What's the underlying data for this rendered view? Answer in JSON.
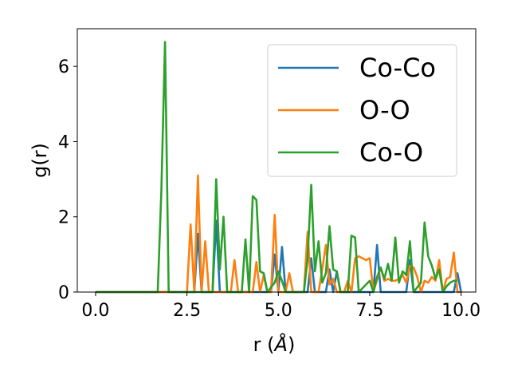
{
  "chart_data": {
    "type": "line",
    "xlabel": "r (",
    "xlabel_unit": "Å",
    "xlabel_close": ")",
    "ylabel": "g(r)",
    "xlim": [
      -0.5,
      10.4
    ],
    "ylim": [
      0,
      7
    ],
    "xticks": [
      0.0,
      2.5,
      5.0,
      7.5,
      10.0
    ],
    "xtick_labels": [
      "0.0",
      "2.5",
      "5.0",
      "7.5",
      "10.0"
    ],
    "yticks": [
      0,
      2,
      4,
      6
    ],
    "ytick_labels": [
      "0",
      "2",
      "4",
      "6"
    ],
    "grid": false,
    "legend_position": "top-right",
    "series": [
      {
        "name": "Co-Co",
        "color": "#1f77b4",
        "points": [
          [
            0,
            0
          ],
          [
            2.5,
            0
          ],
          [
            2.6,
            0
          ],
          [
            2.7,
            0
          ],
          [
            2.8,
            1.55
          ],
          [
            2.9,
            0
          ],
          [
            3.2,
            0
          ],
          [
            3.3,
            1.9
          ],
          [
            3.4,
            0
          ],
          [
            4.8,
            0
          ],
          [
            4.9,
            1.0
          ],
          [
            5.0,
            0
          ],
          [
            5.1,
            1.2
          ],
          [
            5.2,
            0
          ],
          [
            5.8,
            0
          ],
          [
            5.9,
            0.9
          ],
          [
            6.0,
            0
          ],
          [
            6.3,
            0
          ],
          [
            6.4,
            0.6
          ],
          [
            6.5,
            0
          ],
          [
            6.6,
            0.55
          ],
          [
            6.7,
            0
          ],
          [
            7.6,
            0
          ],
          [
            7.7,
            1.25
          ],
          [
            7.8,
            0
          ],
          [
            8.5,
            0
          ],
          [
            8.6,
            0.85
          ],
          [
            8.7,
            0
          ],
          [
            9.8,
            0
          ],
          [
            9.9,
            0.5
          ],
          [
            10.0,
            0
          ]
        ]
      },
      {
        "name": "O-O",
        "color": "#ff7f0e",
        "points": [
          [
            0,
            0
          ],
          [
            2.5,
            0
          ],
          [
            2.6,
            1.8
          ],
          [
            2.7,
            0
          ],
          [
            2.8,
            3.1
          ],
          [
            2.9,
            0
          ],
          [
            3.0,
            1.35
          ],
          [
            3.1,
            0
          ],
          [
            3.7,
            0
          ],
          [
            3.8,
            0.85
          ],
          [
            3.9,
            0
          ],
          [
            4.3,
            0
          ],
          [
            4.4,
            0.8
          ],
          [
            4.5,
            0
          ],
          [
            4.6,
            0.45
          ],
          [
            4.7,
            0
          ],
          [
            4.8,
            0
          ],
          [
            4.9,
            2.05
          ],
          [
            5.0,
            0
          ],
          [
            5.2,
            0
          ],
          [
            5.3,
            0.5
          ],
          [
            5.4,
            0
          ],
          [
            5.7,
            0
          ],
          [
            5.8,
            1.6
          ],
          [
            5.9,
            0
          ],
          [
            6.1,
            0
          ],
          [
            6.2,
            0.6
          ],
          [
            6.3,
            1.25
          ],
          [
            6.4,
            0.2
          ],
          [
            6.5,
            0.35
          ],
          [
            6.6,
            0
          ],
          [
            6.8,
            0
          ],
          [
            6.9,
            0.3
          ],
          [
            7.0,
            0
          ],
          [
            7.1,
            0.9
          ],
          [
            7.2,
            0.95
          ],
          [
            7.3,
            0.9
          ],
          [
            7.4,
            0.85
          ],
          [
            7.5,
            0.9
          ],
          [
            7.6,
            0
          ],
          [
            7.8,
            0.65
          ],
          [
            7.9,
            0.3
          ],
          [
            8.0,
            0.35
          ],
          [
            8.1,
            0.3
          ],
          [
            8.2,
            0.3
          ],
          [
            8.3,
            0.35
          ],
          [
            8.4,
            0.45
          ],
          [
            8.5,
            0.25
          ],
          [
            8.6,
            0.7
          ],
          [
            8.7,
            0.65
          ],
          [
            8.8,
            0.4
          ],
          [
            8.9,
            0
          ],
          [
            9.0,
            0.3
          ],
          [
            9.1,
            0.25
          ],
          [
            9.2,
            0.4
          ],
          [
            9.3,
            0.3
          ],
          [
            9.4,
            0.85
          ],
          [
            9.5,
            0
          ],
          [
            9.6,
            0.35
          ],
          [
            9.7,
            0.4
          ],
          [
            9.8,
            1.05
          ],
          [
            9.9,
            0
          ],
          [
            10.0,
            0
          ]
        ]
      },
      {
        "name": "Co-O",
        "color": "#2ca02c",
        "points": [
          [
            0,
            0
          ],
          [
            1.7,
            0
          ],
          [
            1.8,
            2.7
          ],
          [
            1.9,
            6.65
          ],
          [
            2.0,
            0
          ],
          [
            2.1,
            0
          ],
          [
            3.2,
            0
          ],
          [
            3.3,
            3.0
          ],
          [
            3.4,
            0.6
          ],
          [
            3.5,
            2.0
          ],
          [
            3.6,
            0
          ],
          [
            4.0,
            0
          ],
          [
            4.1,
            1.4
          ],
          [
            4.2,
            0
          ],
          [
            4.3,
            2.55
          ],
          [
            4.4,
            2.45
          ],
          [
            4.5,
            0.55
          ],
          [
            4.6,
            0.5
          ],
          [
            4.7,
            0
          ],
          [
            4.9,
            0.25
          ],
          [
            5.0,
            0.55
          ],
          [
            5.1,
            0.3
          ],
          [
            5.2,
            0
          ],
          [
            5.7,
            0
          ],
          [
            5.8,
            0.9
          ],
          [
            5.9,
            2.85
          ],
          [
            6.0,
            0.55
          ],
          [
            6.1,
            1.35
          ],
          [
            6.2,
            0.25
          ],
          [
            6.3,
            0.5
          ],
          [
            6.4,
            1.75
          ],
          [
            6.5,
            0.6
          ],
          [
            6.6,
            0.55
          ],
          [
            6.7,
            0
          ],
          [
            6.9,
            0
          ],
          [
            7.0,
            1.5
          ],
          [
            7.1,
            1.45
          ],
          [
            7.2,
            0
          ],
          [
            7.5,
            0.3
          ],
          [
            7.6,
            0
          ],
          [
            7.7,
            0.4
          ],
          [
            7.8,
            0.65
          ],
          [
            7.9,
            0.35
          ],
          [
            8.0,
            0.75
          ],
          [
            8.1,
            0.3
          ],
          [
            8.2,
            1.45
          ],
          [
            8.3,
            0.25
          ],
          [
            8.4,
            0.55
          ],
          [
            8.5,
            0.45
          ],
          [
            8.6,
            1.35
          ],
          [
            8.7,
            0
          ],
          [
            8.9,
            0.25
          ],
          [
            9.0,
            1.85
          ],
          [
            9.1,
            0.95
          ],
          [
            9.2,
            0.7
          ],
          [
            9.3,
            0.35
          ],
          [
            9.4,
            0.6
          ],
          [
            9.5,
            0
          ],
          [
            9.6,
            0.15
          ],
          [
            9.7,
            0.25
          ],
          [
            9.8,
            0.3
          ],
          [
            9.9,
            0.3
          ]
        ]
      }
    ]
  }
}
